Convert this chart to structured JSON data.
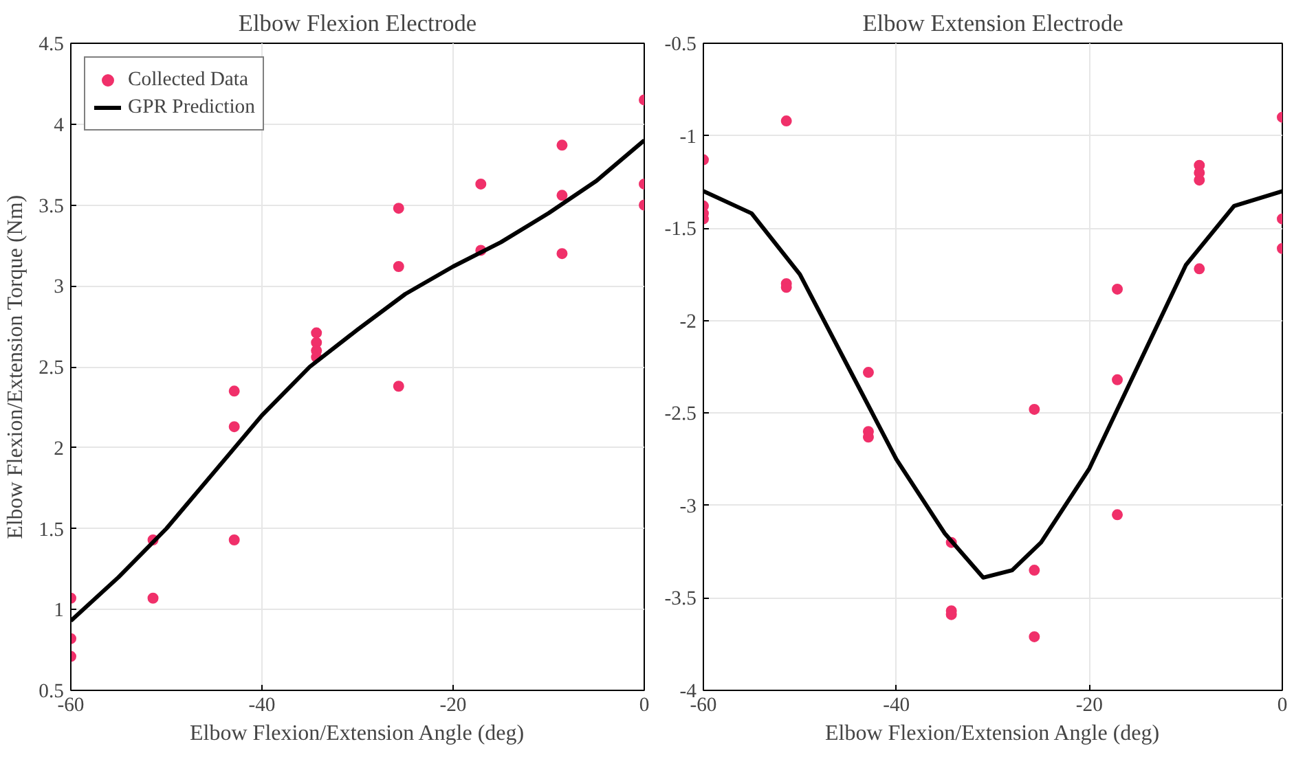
{
  "chart_data": [
    {
      "type": "scatter",
      "title": "Elbow Flexion Electrode",
      "xlabel": "Elbow Flexion/Extension Angle (deg)",
      "ylabel": "Elbow Flexion/Extension Torque (Nm)",
      "xlim": [
        -60,
        0
      ],
      "ylim": [
        0.5,
        4.5
      ],
      "xticks": [
        -60,
        -40,
        -20,
        0
      ],
      "yticks": [
        0.5,
        1,
        1.5,
        2,
        2.5,
        3,
        3.5,
        4,
        4.5
      ],
      "grid": true,
      "legend": "top left",
      "series": [
        {
          "name": "Collected Data",
          "marker": "circle",
          "color": "#f0306a",
          "x": [
            -60,
            -60,
            -60,
            -51.4,
            -51.4,
            -42.9,
            -42.9,
            -42.9,
            -34.3,
            -34.3,
            -34.3,
            -34.3,
            -25.7,
            -25.7,
            -25.7,
            -17.1,
            -17.1,
            -8.6,
            -8.6,
            -8.6,
            0,
            0,
            0
          ],
          "values": [
            1.07,
            0.82,
            0.71,
            1.43,
            1.07,
            2.35,
            2.13,
            1.43,
            2.71,
            2.65,
            2.6,
            2.56,
            3.48,
            3.12,
            2.38,
            3.63,
            3.22,
            3.87,
            3.56,
            3.2,
            4.15,
            3.63,
            3.5
          ]
        },
        {
          "name": "GPR Prediction",
          "type": "line",
          "color": "#000000",
          "x": [
            -60,
            -55,
            -50,
            -45,
            -40,
            -35,
            -30,
            -25,
            -20,
            -15,
            -10,
            -5,
            0
          ],
          "values": [
            0.93,
            1.2,
            1.5,
            1.85,
            2.2,
            2.5,
            2.73,
            2.95,
            3.12,
            3.27,
            3.45,
            3.65,
            3.9
          ]
        }
      ]
    },
    {
      "type": "scatter",
      "title": "Elbow Extension Electrode",
      "xlabel": "Elbow Flexion/Extension Angle (deg)",
      "xlim": [
        -60,
        0
      ],
      "ylim": [
        -4,
        -0.5
      ],
      "xticks": [
        -60,
        -40,
        -20,
        0
      ],
      "yticks": [
        -4,
        -3.5,
        -3,
        -2.5,
        -2,
        -1.5,
        -1,
        -0.5
      ],
      "grid": true,
      "series": [
        {
          "marker": "circle",
          "color": "#f0306a",
          "x": [
            -60,
            -60,
            -60,
            -60,
            -51.4,
            -51.4,
            -51.4,
            -42.9,
            -42.9,
            -42.9,
            -34.3,
            -34.3,
            -34.3,
            -25.7,
            -25.7,
            -25.7,
            -17.1,
            -17.1,
            -17.1,
            -8.6,
            -8.6,
            -8.6,
            -8.6,
            0,
            0,
            0
          ],
          "values": [
            -1.13,
            -1.38,
            -1.42,
            -1.45,
            -0.92,
            -1.8,
            -1.82,
            -2.28,
            -2.6,
            -2.63,
            -3.2,
            -3.57,
            -3.59,
            -2.48,
            -3.35,
            -3.71,
            -1.83,
            -2.32,
            -3.05,
            -1.16,
            -1.2,
            -1.24,
            -1.72,
            -0.9,
            -1.45,
            -1.61
          ]
        },
        {
          "type": "line",
          "color": "#000000",
          "x": [
            -60,
            -55,
            -50,
            -45,
            -40,
            -35,
            -31,
            -28,
            -25,
            -20,
            -15,
            -10,
            -5,
            0
          ],
          "values": [
            -1.3,
            -1.42,
            -1.75,
            -2.25,
            -2.75,
            -3.15,
            -3.39,
            -3.35,
            -3.2,
            -2.8,
            -2.25,
            -1.7,
            -1.38,
            -1.3
          ]
        }
      ]
    }
  ]
}
